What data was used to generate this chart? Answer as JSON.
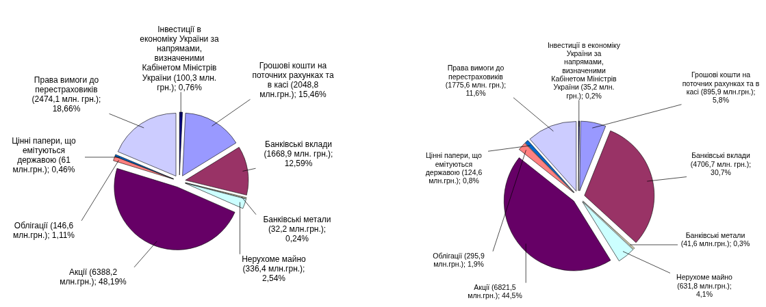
{
  "chart_data": [
    {
      "type": "pie",
      "categories": [
        "Інвестиції в економіку України за напрямами, визначеними Кабінетом Міністрів України",
        "Грошові кошти на поточних рахунках та в касі",
        "Банківські вклади",
        "Банківські метали",
        "Нерухоме майно",
        "Акції",
        "Облігації",
        "Цінні папери, що емітуються державою",
        "Права вимоги до перестраховиків"
      ],
      "values": [
        100.3,
        2048.8,
        1668.9,
        32.2,
        336.4,
        6388.2,
        146.6,
        61,
        2474.1
      ],
      "value_labels": [
        "(100,3 млн. грн.); 0,76%",
        "(2048,8 млн.грн.); 15,46%",
        "(1668,9 млн. грн.); 12,59%",
        "(32,2 млн.грн.); 0,24%",
        "(336,4 млн.грн.); 2,54%",
        "(6388,2 млн.грн.); 48,19%",
        "(146,6 млн.грн.); 1,11%",
        "(61 млн.грн.); 0,46%",
        "(2474,1 млн. грн.); 18,66%"
      ],
      "colors": [
        "#000080",
        "#9999ff",
        "#993366",
        "#ffffcc",
        "#ccffff",
        "#660066",
        "#ff8080",
        "#0066cc",
        "#ccccff"
      ]
    },
    {
      "type": "pie",
      "categories": [
        "Інвестиції в економіку України за напрямами, визначеними Кабінетом Міністрів України",
        "Грошові кошти на поточних рахунках та в касі",
        "Банківські вклади",
        "Банківські метали",
        "Нерухоме майно",
        "Акції",
        "Облігації",
        "Цінні папери, що емітуються державою",
        "Права вимоги до перестраховиків"
      ],
      "values": [
        35.2,
        895.9,
        4706.7,
        41.6,
        631.8,
        6821.5,
        295.9,
        124.6,
        1775.6
      ],
      "value_labels": [
        "(35,2 млн. грн.); 0,2%",
        "(895,9 млн.грн.); 5,8%",
        "(4706,7 млн. грн.); 30,7%",
        "(41,6 млн.грн.); 0,3%",
        "(631,8 млн.грн.); 4,1%",
        "(6821,5 млн.грн.); 44,5%",
        "(295,9 млн.грн.); 1,9%",
        "(124,6 млн.грн.); 0,8%",
        "(1775,6 млн. грн.); 11,6%"
      ],
      "colors": [
        "#000080",
        "#9999ff",
        "#993366",
        "#ffffcc",
        "#ccffff",
        "#660066",
        "#ff8080",
        "#0066cc",
        "#ccccff"
      ]
    }
  ]
}
